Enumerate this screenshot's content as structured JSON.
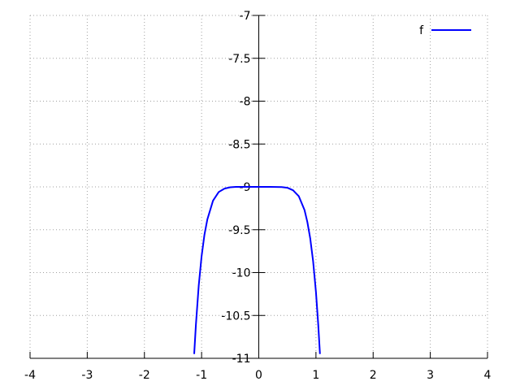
{
  "chart_data": {
    "type": "line",
    "title": "",
    "xlabel": "",
    "ylabel": "",
    "xlim": [
      -4,
      4
    ],
    "ylim": [
      -11,
      -7
    ],
    "xticks": [
      "-4",
      "-3",
      "-2",
      "-1",
      "0",
      "1",
      "2",
      "3",
      "4"
    ],
    "yticks": [
      "-11",
      "-10.5",
      "-10",
      "-9.5",
      "-9",
      "-8.5",
      "-8",
      "-7.5",
      "-7"
    ],
    "grid": true,
    "legend_position": "top-right",
    "series": [
      {
        "name": "f",
        "color": "#0000ff",
        "x": [
          -1.13,
          -1.1,
          -1.05,
          -1.0,
          -0.95,
          -0.9,
          -0.8,
          -0.7,
          -0.6,
          -0.5,
          -0.4,
          -0.2,
          0,
          0.2,
          0.4,
          0.5,
          0.6,
          0.7,
          0.8,
          0.85,
          0.9,
          0.95,
          1.0,
          1.04,
          1.07
        ],
        "y": [
          -10.95,
          -10.61,
          -10.15,
          -9.81,
          -9.56,
          -9.38,
          -9.16,
          -9.06,
          -9.02,
          -9.005,
          -9.0,
          -9.0,
          -9.0,
          -9.0,
          -9.003,
          -9.01,
          -9.04,
          -9.11,
          -9.27,
          -9.41,
          -9.6,
          -9.87,
          -10.23,
          -10.61,
          -10.95
        ]
      }
    ]
  }
}
